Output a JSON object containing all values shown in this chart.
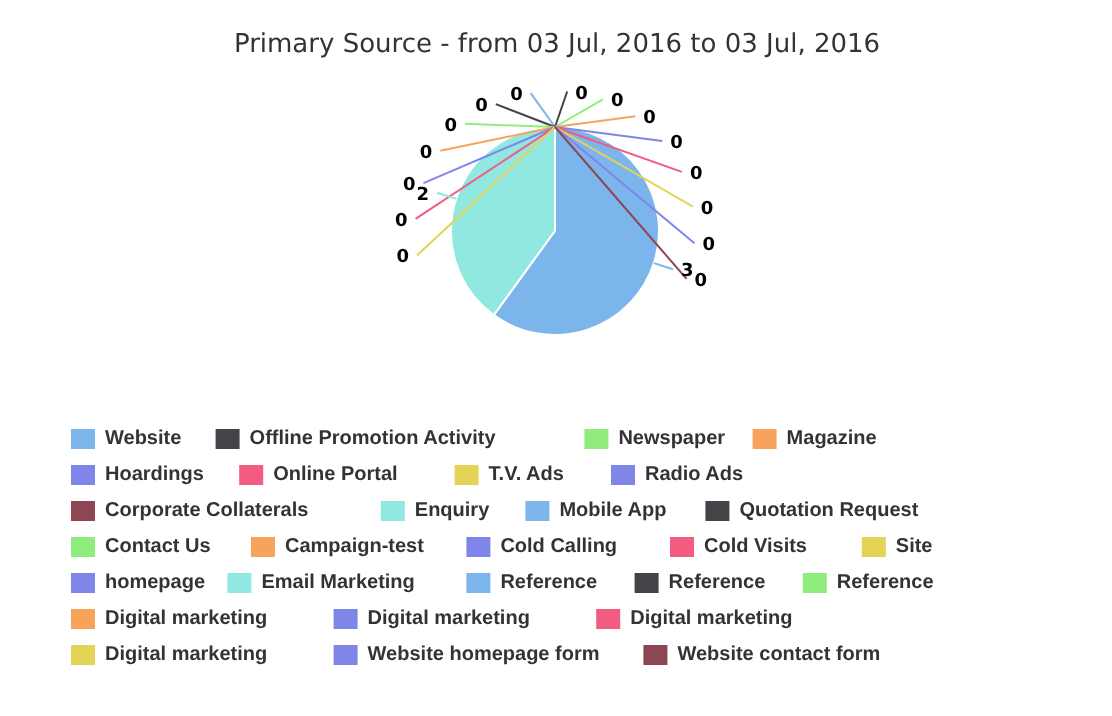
{
  "chart_data": {
    "type": "pie",
    "title": "Primary Source - from 03 Jul, 2016 to 03 Jul, 2016",
    "categories": [
      "Website",
      "Offline Promotion Activity",
      "Newspaper",
      "Magazine",
      "Hoardings",
      "Online Portal",
      "T.V. Ads",
      "Radio Ads",
      "Corporate Collaterals",
      "Enquiry",
      "Mobile App",
      "Quotation Request",
      "Contact Us",
      "Campaign-test",
      "Cold Calling",
      "Cold Visits",
      "Site",
      "homepage",
      null,
      "Email Marketing",
      "Reference",
      "Reference",
      "Reference",
      "Digital marketing",
      "Digital marketing",
      "Digital marketing",
      "Digital marketing",
      "Website homepage form",
      "Website contact form"
    ],
    "values": [
      0,
      0,
      0,
      0,
      0,
      0,
      0,
      0,
      0,
      2,
      3,
      0,
      0,
      0,
      0,
      0,
      0,
      0,
      0,
      0,
      0,
      0,
      0,
      0,
      0,
      0,
      0,
      0,
      0
    ],
    "colors": [
      "#7cb5ec",
      "#434348",
      "#90ed7d",
      "#f7a35c",
      "#8085e9",
      "#f15c80",
      "#e4d354",
      "#8085e8",
      "#8d4653",
      "#91e8e1",
      "#7cb5ec",
      "#434348",
      "#90ed7d",
      "#f7a35c",
      "#8085e9",
      "#f15c80",
      "#e4d354",
      "#8085e8",
      "#8d4653",
      "#91e8e1",
      "#7cb5ec",
      "#434348",
      "#90ed7d",
      "#f7a35c",
      "#8085e9",
      "#f15c80",
      "#e4d354",
      "#8085e8",
      "#8d4653"
    ],
    "value_labels": [
      "0",
      "0",
      "0",
      "0",
      "0",
      "0",
      "0",
      null,
      null,
      "2",
      "3",
      "0",
      "0",
      "0",
      "0",
      "0",
      "0",
      "0",
      "0",
      null,
      null,
      null,
      null,
      null,
      null,
      null,
      null,
      null,
      null
    ],
    "legend": "bottom"
  }
}
